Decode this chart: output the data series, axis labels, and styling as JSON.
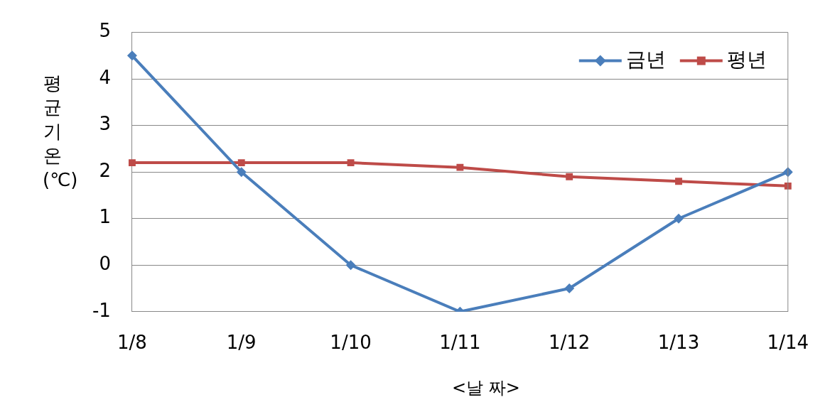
{
  "chart_data": {
    "type": "line",
    "xlabel": "<날 짜>",
    "ylabel": "평균기온(℃)",
    "categories": [
      "1/8",
      "1/9",
      "1/10",
      "1/11",
      "1/12",
      "1/13",
      "1/14"
    ],
    "series": [
      {
        "name": "금년",
        "color": "#4a7ebb",
        "marker": "diamond",
        "values": [
          4.5,
          2,
          0,
          -1,
          -0.5,
          1,
          2
        ]
      },
      {
        "name": "평년",
        "color": "#be4b48",
        "marker": "square",
        "values": [
          2.2,
          2.2,
          2.2,
          2.1,
          1.9,
          1.8,
          1.7
        ]
      }
    ],
    "ylim": [
      -1,
      5
    ],
    "yticks": [
      -1,
      0,
      1,
      2,
      3,
      4,
      5
    ],
    "grid": "y",
    "legend": "top right",
    "line_style": "solid"
  }
}
